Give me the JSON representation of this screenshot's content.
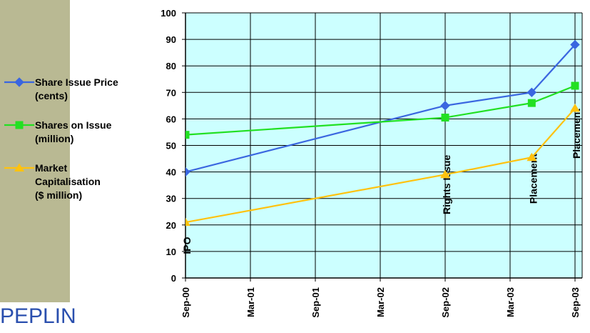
{
  "brand": {
    "logo_text": "PEPLIN"
  },
  "colors": {
    "plot_bg": "#ccffff",
    "sidebar": "#b9b993",
    "logo": "#2a4fae"
  },
  "chart_data": {
    "type": "line",
    "x": [
      "Sep-00",
      "Mar-01",
      "Sep-01",
      "Mar-02",
      "Sep-02",
      "Mar-03",
      "Sep-03"
    ],
    "xlim": [
      "Sep-00",
      "Sep-03"
    ],
    "ylim": [
      0,
      100
    ],
    "yticks": [
      0,
      10,
      20,
      30,
      40,
      50,
      60,
      70,
      80,
      90,
      100
    ],
    "grid": true,
    "legend_position": "left",
    "series": [
      {
        "name": "Share Issue Price\n(cents)",
        "color": "#3a66e0",
        "marker": "diamond",
        "points": [
          {
            "x": "Sep-00",
            "y": 40
          },
          {
            "x": "Sep-02",
            "y": 65
          },
          {
            "x": "May-03",
            "y": 70
          },
          {
            "x": "Sep-03",
            "y": 88
          }
        ]
      },
      {
        "name": "Shares on Issue\n(million)",
        "color": "#22e022",
        "marker": "square",
        "points": [
          {
            "x": "Sep-00",
            "y": 54
          },
          {
            "x": "Sep-02",
            "y": 60.5
          },
          {
            "x": "May-03",
            "y": 66
          },
          {
            "x": "Sep-03",
            "y": 72.5
          }
        ]
      },
      {
        "name": "Market\nCapitalisation\n($ million)",
        "color": "#ffc20e",
        "marker": "triangle",
        "points": [
          {
            "x": "Sep-00",
            "y": 21
          },
          {
            "x": "Sep-02",
            "y": 39
          },
          {
            "x": "May-03",
            "y": 45.5
          },
          {
            "x": "Sep-03",
            "y": 64
          }
        ]
      }
    ],
    "annotations": [
      {
        "text": "IPO",
        "x": "Sep-00",
        "y": 9
      },
      {
        "text": "Rights Issue",
        "x": "Sep-02",
        "y": 24
      },
      {
        "text": "Placement",
        "x": "May-03",
        "y": 28
      },
      {
        "text": "Placement",
        "x": "Sep-03",
        "y": 45
      }
    ]
  }
}
